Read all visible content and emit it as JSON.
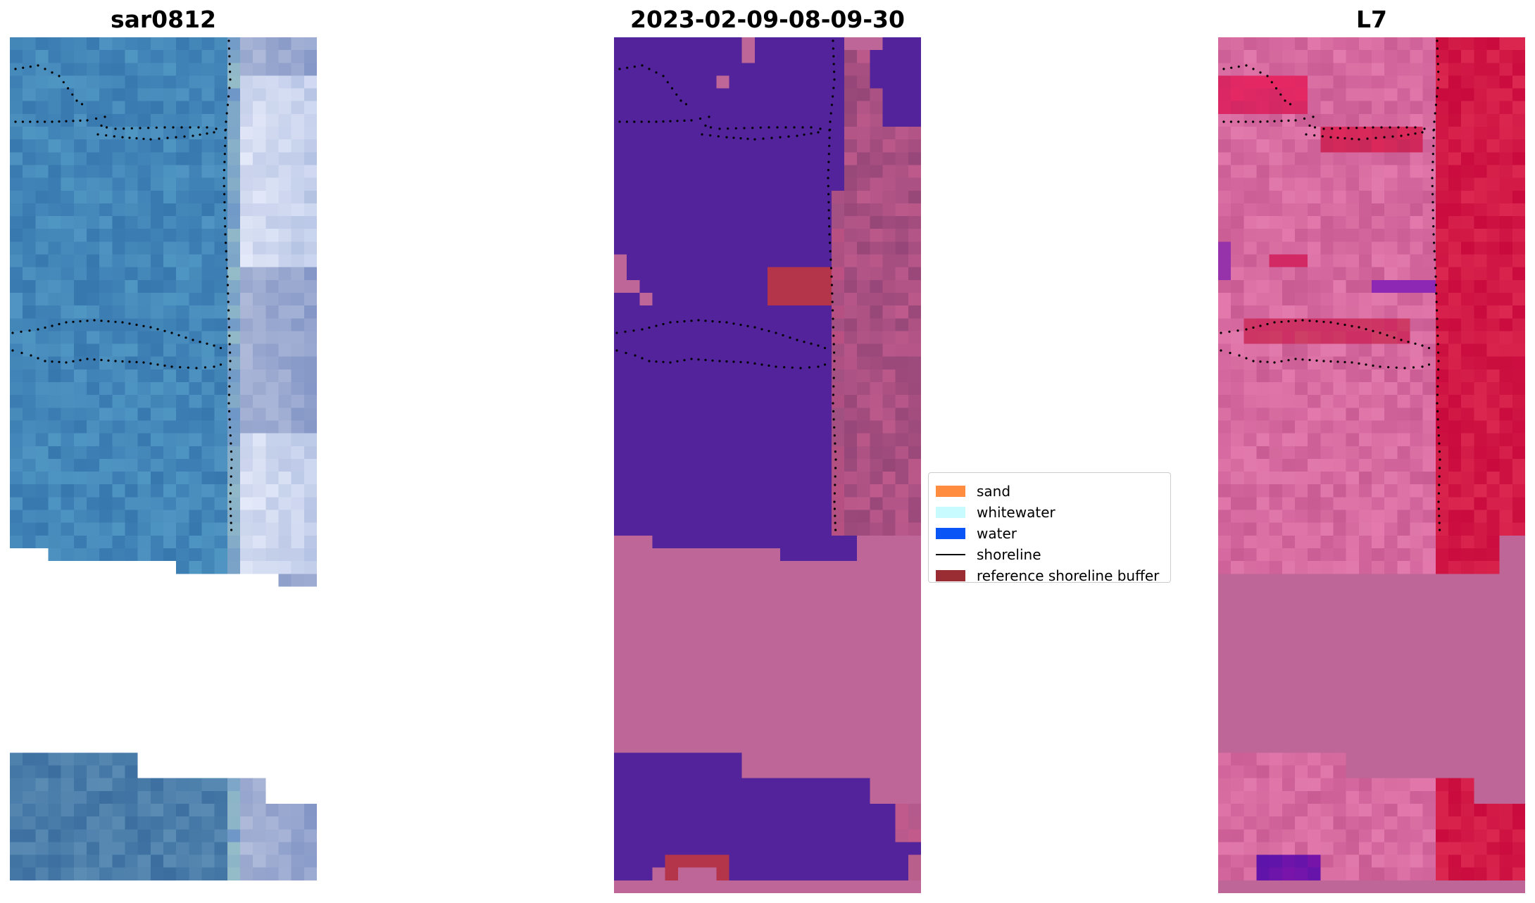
{
  "panels": [
    {
      "id": "rgb",
      "title": "sar0812"
    },
    {
      "id": "classification",
      "title": "2023-02-09-08-09-30"
    },
    {
      "id": "index",
      "title": "L7"
    }
  ],
  "legend": {
    "items": [
      {
        "label": "sand",
        "color": "#ff8c3f",
        "kind": "patch"
      },
      {
        "label": "whitewater",
        "color": "#c8fbff",
        "kind": "patch"
      },
      {
        "label": "water",
        "color": "#0a55f5",
        "kind": "patch"
      },
      {
        "label": "shoreline",
        "color": "#000000",
        "kind": "line"
      },
      {
        "label": "reference shoreline buffer",
        "color": "#9a2d33",
        "kind": "patch"
      }
    ]
  },
  "colors": {
    "classification_water": "#52239a",
    "no_data_pink": "#bd6697",
    "buffer_red": "#b43449",
    "index_base": "#d4709e",
    "index_strong": "#c8103f",
    "rgb_base": "#3f7fb6"
  }
}
